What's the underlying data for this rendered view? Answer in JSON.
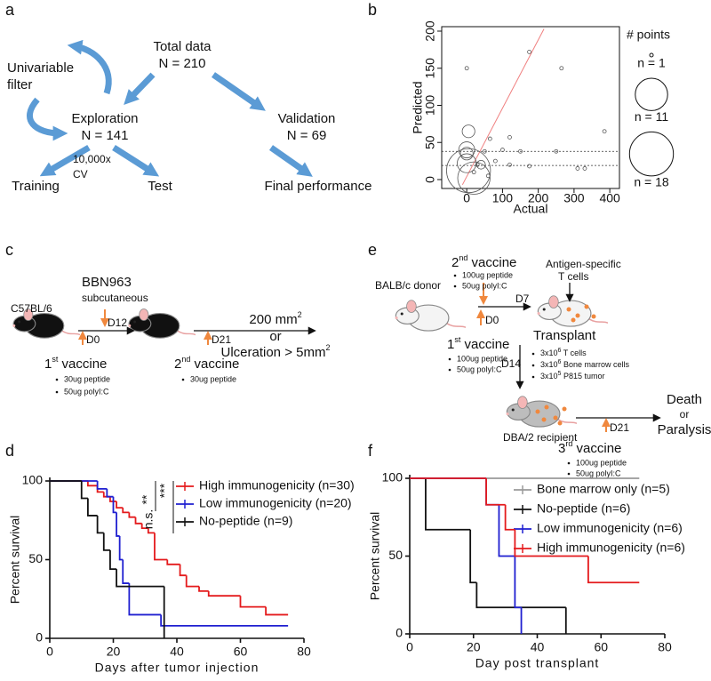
{
  "panel_labels": [
    "a",
    "b",
    "c",
    "d",
    "e",
    "f"
  ],
  "diagram_a": {
    "total": [
      "Total data",
      "N = 210"
    ],
    "filter": [
      "Univariable",
      "filter"
    ],
    "exploration": [
      "Exploration",
      "N = 141"
    ],
    "validation": [
      "Validation",
      "N = 69"
    ],
    "cv": [
      "10,000x",
      "CV"
    ],
    "training": "Training",
    "test": "Test",
    "final": "Final performance"
  },
  "diagram_c": {
    "strain": "C57BL/6",
    "tumor": [
      "BBN963",
      "subcutaneous"
    ],
    "d0": "D0",
    "d12": "D12",
    "d21": "D21",
    "endpoint_1": [
      "200 mm",
      "2"
    ],
    "endpoint_or": "or",
    "endpoint_2": [
      "Ulceration > 5mm",
      "2"
    ],
    "vaccine_1": [
      "1",
      "st",
      " vaccine"
    ],
    "vaccine_1_items": [
      "30ug peptide",
      "50ug polyI:C"
    ],
    "vaccine_2": [
      "2",
      "nd",
      " vaccine"
    ],
    "vaccine_2_items": [
      "30ug peptide"
    ]
  },
  "diagram_e": {
    "donor": "BALB/c donor",
    "vaccine_2": [
      "2",
      "nd",
      " vaccine"
    ],
    "vaccine_2_items": [
      "100ug peptide",
      "50ug polyI:C"
    ],
    "d0": "D0",
    "d7": "D7",
    "t_cells": [
      "Antigen-specific",
      "T cells"
    ],
    "transplant": "Transplant",
    "vaccine_1": [
      "1",
      "st",
      " vaccine"
    ],
    "vaccine_1_items": [
      "100ug peptide",
      "50ug polyI:C"
    ],
    "d14": "D14",
    "transplant_items": [
      [
        "3x10",
        "6",
        " T cells"
      ],
      [
        "3x10",
        "6",
        " Bone marrow cells"
      ],
      [
        "3x10",
        "5",
        " P815 tumor"
      ]
    ],
    "recipient": "DBA/2 recipient",
    "d21": "D21",
    "outcome": [
      "Death",
      "or",
      "Paralysis"
    ],
    "vaccine_3": [
      "3",
      "rd",
      " vaccine"
    ],
    "vaccine_3_items": [
      "100ug peptide",
      "50ug polyI:C"
    ]
  },
  "chart_data": [
    {
      "type": "bubble",
      "xlabel": "Actual",
      "ylabel": "Predicted",
      "xlim": [
        -70,
        427
      ],
      "ylim": [
        -12,
        206
      ],
      "xticks": [
        0,
        100,
        200,
        300,
        400
      ],
      "yticks": [
        0,
        50,
        100,
        150,
        200
      ],
      "color": "#555555",
      "x": [
        0,
        175,
        265,
        385,
        120,
        65,
        100,
        150,
        250,
        50,
        80,
        120,
        175,
        310,
        330,
        30,
        20,
        60,
        5,
        0,
        0,
        0,
        5,
        20,
        40
      ],
      "y": [
        150,
        172,
        150,
        65,
        57,
        55,
        40,
        38,
        38,
        38,
        25,
        20,
        18,
        15,
        15,
        20,
        10,
        5,
        65,
        40,
        35,
        22,
        12,
        2,
        20
      ],
      "sizes": [
        1,
        1,
        1,
        1,
        1,
        1,
        1,
        1,
        1,
        1,
        1,
        1,
        1,
        1,
        1,
        1,
        1,
        1,
        3,
        4,
        3,
        5,
        18,
        11,
        2
      ],
      "size_legend": {
        "title": "# points",
        "labels": [
          "n = 1",
          "n = 11",
          "n = 18"
        ],
        "sizes": [
          1,
          11,
          18
        ]
      },
      "fit_line": {
        "x": [
          -12,
          216
        ],
        "y": [
          -7,
          203
        ],
        "color": "#f08080"
      },
      "hlines": [
        38,
        19
      ]
    },
    {
      "type": "step",
      "xlabel": "Days after tumor injection",
      "ylabel": "Percent survival",
      "xlim": [
        0,
        80
      ],
      "ylim": [
        0,
        100
      ],
      "xticks": [
        0,
        20,
        40,
        60,
        80
      ],
      "yticks": [
        0,
        50,
        100
      ],
      "annotations": [
        "**",
        "***",
        "n.s."
      ],
      "series": [
        {
          "name": "High immunogenicity (n=30)",
          "color": "#e41a1c",
          "x": [
            0,
            12,
            15,
            17,
            19,
            21,
            23,
            25,
            27,
            29,
            31,
            33,
            37,
            41,
            43,
            47,
            50,
            60,
            68,
            75
          ],
          "values": [
            100,
            97,
            93,
            90,
            87,
            83,
            80,
            77,
            73,
            70,
            67,
            50,
            47,
            40,
            33,
            30,
            27,
            20,
            15,
            15
          ]
        },
        {
          "name": "Low immunogenicity (n=20)",
          "color": "#1f1fd0",
          "x": [
            0,
            15,
            18,
            20,
            21,
            22,
            23,
            25,
            35,
            75
          ],
          "values": [
            100,
            95,
            90,
            80,
            65,
            50,
            35,
            15,
            8,
            8
          ]
        },
        {
          "name": "No-peptide (n=9)",
          "color": "#111111",
          "x": [
            0,
            10,
            12,
            15,
            17,
            19,
            21,
            36
          ],
          "values": [
            100,
            89,
            78,
            67,
            56,
            44,
            33,
            0
          ]
        }
      ]
    },
    {
      "type": "step",
      "xlabel": "Day post transplant",
      "ylabel": "Percent survival",
      "xlim": [
        0,
        80
      ],
      "ylim": [
        0,
        100
      ],
      "xticks": [
        0,
        20,
        40,
        60,
        80
      ],
      "yticks": [
        0,
        50,
        100
      ],
      "series": [
        {
          "name": "Bone marrow only (n=5)",
          "color": "#9a9a9a",
          "x": [
            0,
            72
          ],
          "values": [
            100,
            100
          ]
        },
        {
          "name": "No-peptide (n=6)",
          "color": "#111111",
          "x": [
            0,
            5,
            19,
            21,
            49
          ],
          "values": [
            100,
            67,
            33,
            17,
            0
          ]
        },
        {
          "name": "Low immunogenicity (n=6)",
          "color": "#1f1fd0",
          "x": [
            0,
            24,
            28,
            33,
            35
          ],
          "values": [
            100,
            83,
            50,
            17,
            0
          ]
        },
        {
          "name": "High immunogenicity (n=6)",
          "color": "#e41a1c",
          "x": [
            0,
            24,
            30,
            33,
            56,
            72
          ],
          "values": [
            100,
            83,
            67,
            50,
            33,
            33
          ]
        }
      ]
    }
  ]
}
